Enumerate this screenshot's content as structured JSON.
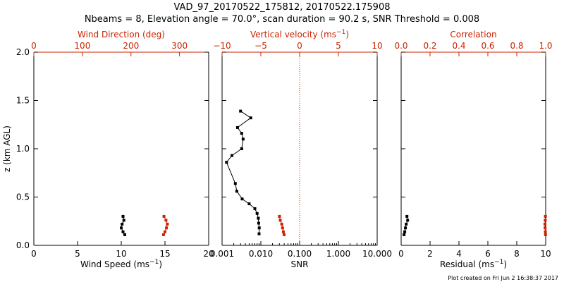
{
  "title_line1": "VAD_97_20170522_175812, 20170522.175908",
  "title_line2": "Nbeams = 8, Elevation angle = 70.0°, scan duration = 90.2 s, SNR Threshold = 0.008",
  "footer": "Plot created on Fri Jun  2 16:38:37 2017",
  "colors": {
    "primary": "#000000",
    "secondary": "#cc2200"
  },
  "chart_data": [
    {
      "type": "line",
      "name": "wind-panel",
      "ylabel": "z (km AGL)",
      "ylim": [
        0,
        2.0
      ],
      "yticks": [
        0.0,
        0.5,
        1.0,
        1.5,
        2.0
      ],
      "ytick_labels": [
        "0.0",
        "0.5",
        "1.0",
        "1.5",
        "2.0"
      ],
      "bottom_axis": {
        "label_main": "Wind Speed (ms",
        "label_sup": "−1",
        "label_tail": ")",
        "range": [
          0,
          20
        ],
        "ticks": [
          0,
          5,
          10,
          15,
          20
        ],
        "tick_labels": [
          "0",
          "5",
          "10",
          "15",
          "20"
        ]
      },
      "top_axis": {
        "label": "Wind Direction (deg)",
        "range": [
          0,
          360
        ],
        "ticks": [
          0,
          100,
          200,
          300
        ],
        "tick_labels": [
          "0",
          "100",
          "200",
          "300"
        ]
      },
      "series": [
        {
          "name": "Wind Speed",
          "axis": "bottom",
          "color": "black",
          "x": [
            10.2,
            10.3,
            10.1,
            10.0,
            10.2,
            10.4
          ],
          "y": [
            0.3,
            0.26,
            0.22,
            0.18,
            0.14,
            0.11
          ]
        },
        {
          "name": "Wind Direction",
          "axis": "top",
          "color": "red",
          "x": [
            268,
            272,
            275,
            273,
            270,
            267
          ],
          "y": [
            0.3,
            0.26,
            0.22,
            0.18,
            0.14,
            0.11
          ]
        }
      ]
    },
    {
      "type": "line",
      "name": "snr-panel",
      "ylim": [
        0,
        2.0
      ],
      "yticks": [
        0.0,
        0.5,
        1.0,
        1.5,
        2.0
      ],
      "bottom_axis": {
        "label_main": "SNR",
        "scale": "log",
        "range": [
          0.001,
          10.0
        ],
        "ticks": [
          0.001,
          0.01,
          0.1,
          1.0,
          10.0
        ],
        "tick_labels": [
          "0.001",
          "0.010",
          "0.100",
          "1.000",
          "10.000"
        ]
      },
      "top_axis": {
        "label": "Vertical velocity (ms",
        "label_sup": "−1",
        "label_tail": ")",
        "range": [
          -10,
          10
        ],
        "ticks": [
          -10,
          -5,
          0,
          5,
          10
        ],
        "tick_labels": [
          "−10",
          "−5",
          "0",
          "5",
          "10"
        ]
      },
      "reference_line": {
        "axis": "top",
        "value": 0,
        "style": "dotted",
        "color": "red"
      },
      "series": [
        {
          "name": "SNR",
          "axis": "bottom",
          "color": "black",
          "x": [
            0.003,
            0.0055,
            0.0025,
            0.0032,
            0.0035,
            0.0032,
            0.0018,
            0.0013,
            0.0022,
            0.0024,
            0.0033,
            0.005,
            0.007,
            0.008,
            0.0086,
            0.0088,
            0.0091,
            0.009
          ],
          "y": [
            1.39,
            1.32,
            1.22,
            1.16,
            1.1,
            1.0,
            0.93,
            0.86,
            0.64,
            0.56,
            0.48,
            0.43,
            0.38,
            0.33,
            0.28,
            0.23,
            0.18,
            0.12
          ]
        },
        {
          "name": "Vertical velocity",
          "axis": "top",
          "color": "red",
          "x": [
            -2.6,
            -2.5,
            -2.3,
            -2.2,
            -2.1,
            -2.0
          ],
          "y": [
            0.3,
            0.26,
            0.22,
            0.18,
            0.14,
            0.11
          ]
        }
      ]
    },
    {
      "type": "line",
      "name": "residual-panel",
      "ylim": [
        0,
        2.0
      ],
      "yticks": [
        0.0,
        0.5,
        1.0,
        1.5,
        2.0
      ],
      "bottom_axis": {
        "label_main": "Residual (ms",
        "label_sup": "−1",
        "label_tail": ")",
        "range": [
          0,
          10
        ],
        "ticks": [
          0,
          2,
          4,
          6,
          8,
          10
        ],
        "tick_labels": [
          "0",
          "2",
          "4",
          "6",
          "8",
          "10"
        ]
      },
      "top_axis": {
        "label": "Correlation",
        "range": [
          0.0,
          1.0
        ],
        "ticks": [
          0.0,
          0.2,
          0.4,
          0.6,
          0.8,
          1.0
        ],
        "tick_labels": [
          "0.0",
          "0.2",
          "0.4",
          "0.6",
          "0.8",
          "1.0"
        ]
      },
      "series": [
        {
          "name": "Residual",
          "axis": "bottom",
          "color": "black",
          "x": [
            0.4,
            0.45,
            0.35,
            0.3,
            0.25,
            0.2
          ],
          "y": [
            0.3,
            0.26,
            0.22,
            0.18,
            0.14,
            0.11
          ]
        },
        {
          "name": "Correlation",
          "axis": "top",
          "color": "red",
          "x": [
            0.998,
            0.997,
            0.995,
            0.996,
            0.998,
            0.999
          ],
          "y": [
            0.3,
            0.26,
            0.22,
            0.18,
            0.14,
            0.11
          ]
        }
      ]
    }
  ]
}
